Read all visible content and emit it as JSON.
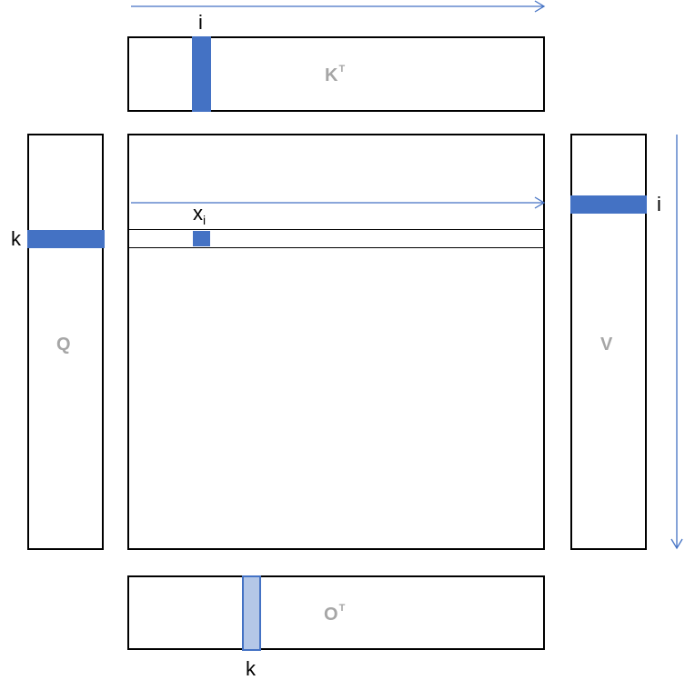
{
  "matrices": {
    "kt": {
      "name": "K",
      "sup": "T"
    },
    "q": {
      "name": "Q"
    },
    "v": {
      "name": "V"
    },
    "ot": {
      "name": "O",
      "sup": "T"
    }
  },
  "indices": {
    "kt_column": "i",
    "q_row": "k",
    "v_row": "i",
    "ot_column": "k",
    "x_cell": "x",
    "x_cell_sub": "i"
  },
  "colors": {
    "highlight": "#4472c4",
    "highlight_light": "#b4c7e7",
    "matrix_label": "#a6a6a6",
    "arrow": "#4472c4",
    "border": "#000000"
  }
}
